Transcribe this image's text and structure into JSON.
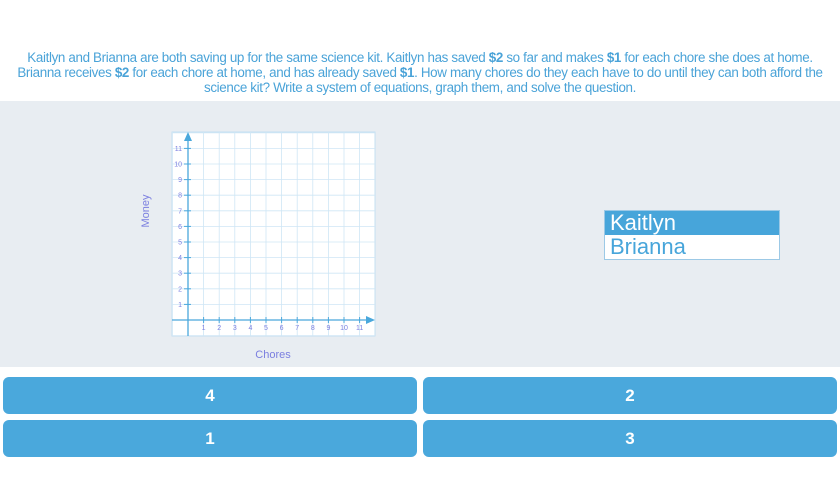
{
  "question": {
    "parts": [
      {
        "text": "Kaitlyn and Brianna are both saving up for the same science kit. Kaitlyn has saved ",
        "bold": false
      },
      {
        "text": "$2",
        "bold": true
      },
      {
        "text": " so far and makes ",
        "bold": false
      },
      {
        "text": "$1",
        "bold": true
      },
      {
        "text": " for each chore she does at home. Brianna receives ",
        "bold": false
      },
      {
        "text": "$2",
        "bold": true
      },
      {
        "text": " for each chore at home, and has already saved ",
        "bold": false
      },
      {
        "text": "$1",
        "bold": true
      },
      {
        "text": ". How many chores do they each have to do until they can both afford the science kit? Write a system of equations, graph them, and solve the question.",
        "bold": false
      }
    ]
  },
  "graph": {
    "xlabel": "Chores",
    "ylabel": "Money",
    "x_ticks": [
      "1",
      "2",
      "3",
      "4",
      "5",
      "6",
      "7",
      "8",
      "9",
      "10",
      "11"
    ],
    "y_ticks": [
      "1",
      "2",
      "3",
      "4",
      "5",
      "6",
      "7",
      "8",
      "9",
      "10",
      "11"
    ],
    "axis_color": "#4aa8dc",
    "grid_color": "#cfe6f5",
    "label_color": "#7b7fe0"
  },
  "legend": {
    "items": [
      {
        "label": "Kaitlyn",
        "selected": true
      },
      {
        "label": "Brianna",
        "selected": false
      }
    ]
  },
  "answers": [
    "4",
    "2",
    "1",
    "3"
  ],
  "colors": {
    "accent": "#4aa8dc",
    "panel": "#e8edf2"
  }
}
